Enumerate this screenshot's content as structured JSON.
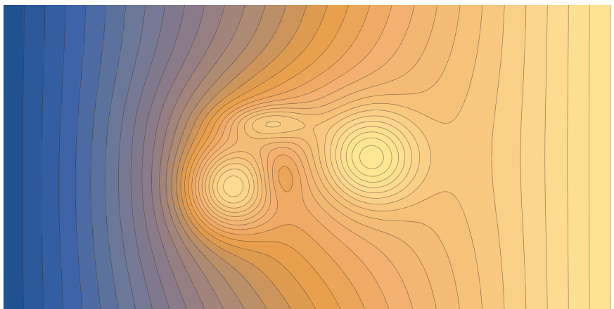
{
  "chart_data": {
    "type": "contour",
    "colors": [
      "#1c4f8c",
      "#3a62a8",
      "#6a7898",
      "#8d7a88",
      "#b08c70",
      "#e89e48",
      "#f2b070",
      "#f6c27a",
      "#fdd890",
      "#fde694"
    ]
  }
}
